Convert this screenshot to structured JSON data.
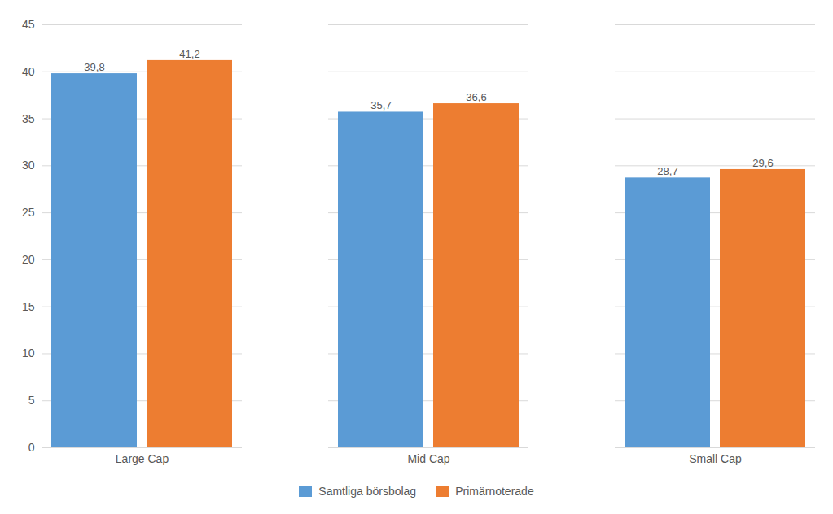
{
  "chart_data": {
    "type": "bar",
    "categories": [
      "Large Cap",
      "Mid Cap",
      "Small Cap"
    ],
    "series": [
      {
        "name": "Samtliga börsbolag",
        "color": "#5B9BD5",
        "values": [
          39.8,
          35.7,
          28.7
        ],
        "value_labels": [
          "39,8",
          "35,7",
          "28,7"
        ]
      },
      {
        "name": "Primärnoterade",
        "color": "#ED7D31",
        "values": [
          41.2,
          36.6,
          29.6
        ],
        "value_labels": [
          "41,2",
          "36,6",
          "29,6"
        ]
      }
    ],
    "ylim": [
      0,
      45
    ],
    "yticks": [
      0,
      5,
      10,
      15,
      20,
      25,
      30,
      35,
      40,
      45
    ],
    "grid": true,
    "legend": "bottom",
    "data_labels": true
  }
}
